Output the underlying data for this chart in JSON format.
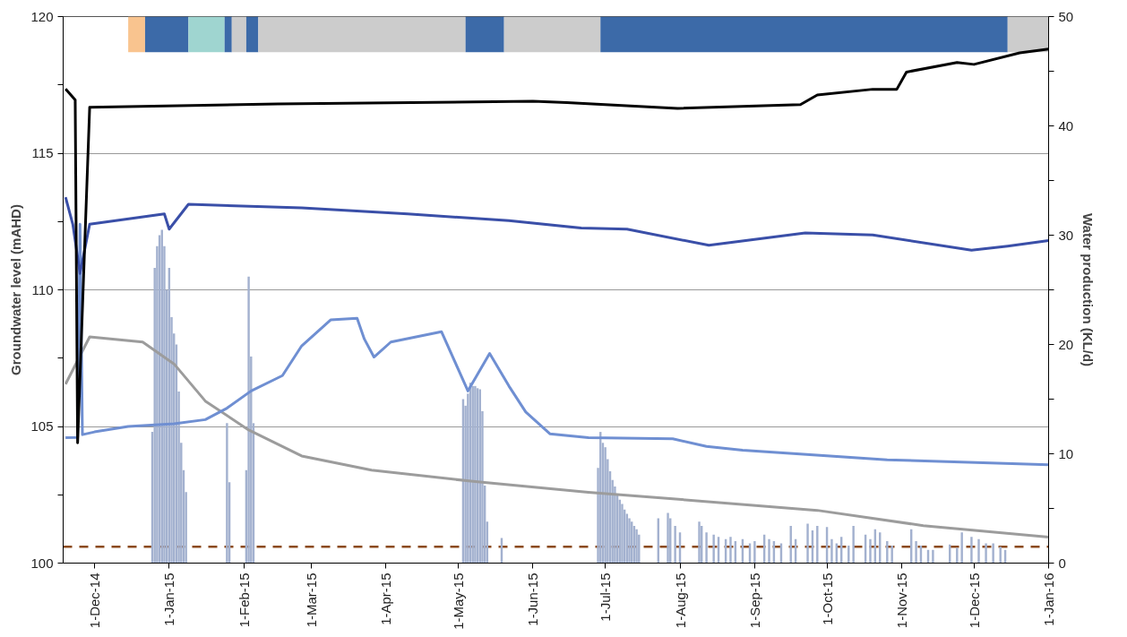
{
  "chart_data": {
    "type": "line",
    "ylabel": "Groundwater level (mAHD)",
    "y2label": "Water production (KL/d)",
    "xlim": [
      "2014-11-18",
      "2016-01-01"
    ],
    "xticks": [
      {
        "value": "2014-12-01",
        "label": "1-Dec-14"
      },
      {
        "value": "2015-01-01",
        "label": "1-Jan-15"
      },
      {
        "value": "2015-02-01",
        "label": "1-Feb-15"
      },
      {
        "value": "2015-03-01",
        "label": "1-Mar-15"
      },
      {
        "value": "2015-04-01",
        "label": "1-Apr-15"
      },
      {
        "value": "2015-05-01",
        "label": "1-May-15"
      },
      {
        "value": "2015-06-01",
        "label": "1-Jun-15"
      },
      {
        "value": "2015-07-01",
        "label": "1-Jul-15"
      },
      {
        "value": "2015-08-01",
        "label": "1-Aug-15"
      },
      {
        "value": "2015-09-01",
        "label": "1-Sep-15"
      },
      {
        "value": "2015-10-01",
        "label": "1-Oct-15"
      },
      {
        "value": "2015-11-01",
        "label": "1-Nov-15"
      },
      {
        "value": "2015-12-01",
        "label": "1-Dec-15"
      },
      {
        "value": "2016-01-01",
        "label": "1-Jan-16"
      }
    ],
    "ylim": [
      100,
      120
    ],
    "yticks": [
      100,
      {
        "value": 102.5,
        "label": null
      },
      105,
      {
        "value": 107.5,
        "label": null
      },
      110,
      {
        "value": 112.5,
        "label": null
      },
      115,
      {
        "value": 117.5,
        "label": null
      },
      120
    ],
    "y2lim": [
      0,
      50
    ],
    "y2ticks": [
      0,
      {
        "value": 5,
        "label": null
      },
      10,
      {
        "value": 15,
        "label": null
      },
      20,
      {
        "value": 25,
        "label": null
      },
      30,
      {
        "value": 35,
        "label": null
      },
      40,
      {
        "value": 45,
        "label": null
      },
      50
    ],
    "grid": "y",
    "series": [
      {
        "type": "bar",
        "axis": "y2",
        "color": "#a3b1cf",
        "x": [
          "2014-12-25",
          "2014-12-26",
          "2014-12-27",
          "2014-12-28",
          "2014-12-29",
          "2014-12-30",
          "2014-12-31",
          "2015-01-01",
          "2015-01-02",
          "2015-01-03",
          "2015-01-04",
          "2015-01-05",
          "2015-01-06",
          "2015-01-07",
          "2015-01-08",
          "2015-01-25",
          "2015-01-26",
          "2015-02-02",
          "2015-02-03",
          "2015-02-04",
          "2015-02-05",
          "2015-05-03",
          "2015-05-04",
          "2015-05-05",
          "2015-05-06",
          "2015-05-07",
          "2015-05-08",
          "2015-05-09",
          "2015-05-10",
          "2015-05-11",
          "2015-05-12",
          "2015-05-13",
          "2015-05-19",
          "2015-06-28",
          "2015-06-29",
          "2015-06-30",
          "2015-07-01",
          "2015-07-02",
          "2015-07-03",
          "2015-07-04",
          "2015-07-05",
          "2015-07-06",
          "2015-07-07",
          "2015-07-08",
          "2015-07-09",
          "2015-07-10",
          "2015-07-11",
          "2015-07-12",
          "2015-07-13",
          "2015-07-14",
          "2015-07-15",
          "2015-07-23",
          "2015-07-27",
          "2015-07-28",
          "2015-07-30",
          "2015-08-01",
          "2015-08-09",
          "2015-08-10",
          "2015-08-12",
          "2015-08-15",
          "2015-08-17",
          "2015-08-20",
          "2015-08-22",
          "2015-08-24",
          "2015-08-27",
          "2015-08-30",
          "2015-09-01",
          "2015-09-05",
          "2015-09-07",
          "2015-09-09",
          "2015-09-12",
          "2015-09-16",
          "2015-09-18",
          "2015-09-23",
          "2015-09-25",
          "2015-09-27",
          "2015-10-01",
          "2015-10-03",
          "2015-10-05",
          "2015-10-07",
          "2015-10-10",
          "2015-10-12",
          "2015-10-17",
          "2015-10-19",
          "2015-10-21",
          "2015-10-23",
          "2015-10-26",
          "2015-10-28",
          "2015-11-05",
          "2015-11-07",
          "2015-11-09",
          "2015-11-12",
          "2015-11-14",
          "2015-11-21",
          "2015-11-24",
          "2015-11-26",
          "2015-11-30",
          "2015-12-03",
          "2015-12-06",
          "2015-12-09",
          "2015-12-12",
          "2015-12-14"
        ],
        "values": [
          12,
          27,
          29,
          30,
          30.5,
          29,
          25,
          27,
          22.5,
          21,
          20,
          15.7,
          11,
          8.5,
          6.5,
          12.8,
          7.4,
          8.5,
          26.2,
          18.9,
          12.8,
          15.0,
          14.4,
          15.5,
          16.5,
          16.2,
          16.2,
          16.0,
          15.9,
          13.9,
          7.1,
          3.8,
          2.3,
          8.7,
          12.0,
          11.0,
          10.6,
          9.5,
          8.4,
          7.6,
          7.0,
          6.3,
          5.8,
          5.4,
          4.9,
          4.5,
          4.1,
          3.8,
          3.4,
          3.1,
          2.6,
          4.1,
          4.6,
          4.1,
          3.4,
          2.8,
          3.8,
          3.4,
          2.8,
          2.6,
          2.4,
          2.2,
          2.4,
          2.0,
          2.2,
          1.8,
          2.0,
          2.6,
          2.2,
          2.0,
          1.8,
          3.4,
          2.2,
          3.6,
          3.0,
          3.4,
          3.3,
          2.2,
          1.8,
          2.4,
          1.6,
          3.4,
          2.6,
          2.2,
          3.1,
          2.8,
          2.0,
          1.6,
          3.1,
          2.0,
          1.6,
          1.2,
          1.2,
          1.7,
          1.4,
          2.8,
          2.4,
          2.2,
          1.8,
          1.8,
          1.5,
          1.2
        ]
      },
      {
        "color": "#9c9c9c",
        "x": [
          "2014-11-19",
          "2014-11-29",
          "2014-12-21",
          "2015-01-03",
          "2015-01-16",
          "2015-02-03",
          "2015-02-25",
          "2015-03-26",
          "2015-05-08",
          "2015-06-24",
          "2015-07-29",
          "2015-09-27",
          "2015-11-10",
          "2016-01-01"
        ],
        "values": [
          106.55,
          108.28,
          108.09,
          107.29,
          105.93,
          104.87,
          103.92,
          103.4,
          102.98,
          102.59,
          102.35,
          101.93,
          101.37,
          100.95
        ]
      },
      {
        "color": "#6f8fd2",
        "x": [
          "2014-11-19",
          "2014-11-24",
          "2014-11-25",
          "2014-11-26",
          "2014-12-01",
          "2014-12-15",
          "2015-01-03",
          "2015-01-16",
          "2015-01-25",
          "2015-02-04",
          "2015-02-17",
          "2015-02-25",
          "2015-03-09",
          "2015-03-20",
          "2015-03-23",
          "2015-03-27",
          "2015-04-03",
          "2015-04-24",
          "2015-05-05",
          "2015-05-14",
          "2015-05-22",
          "2015-05-29",
          "2015-06-08",
          "2015-06-24",
          "2015-07-29",
          "2015-08-12",
          "2015-08-27",
          "2015-10-26",
          "2016-01-01"
        ],
        "values": [
          104.59,
          104.6,
          112.4,
          104.7,
          104.8,
          105.0,
          105.1,
          105.25,
          105.67,
          106.3,
          106.86,
          107.95,
          108.9,
          108.96,
          108.2,
          107.54,
          108.09,
          108.47,
          106.3,
          107.67,
          106.48,
          105.53,
          104.73,
          104.59,
          104.55,
          104.27,
          104.13,
          103.78,
          103.6
        ]
      },
      {
        "color": "#3a4fa8",
        "x": [
          "2014-11-19",
          "2014-11-22",
          "2014-11-25",
          "2014-11-29",
          "2014-12-30",
          "2015-01-01",
          "2015-01-09",
          "2015-02-25",
          "2015-04-10",
          "2015-05-22",
          "2015-06-21",
          "2015-07-10",
          "2015-08-13",
          "2015-09-22",
          "2015-10-20",
          "2015-11-30",
          "2015-12-15",
          "2016-01-01"
        ],
        "values": [
          113.39,
          112.4,
          110.6,
          112.4,
          112.78,
          112.22,
          113.13,
          113.0,
          112.78,
          112.53,
          112.26,
          112.22,
          111.63,
          112.08,
          112.01,
          111.45,
          111.6,
          111.8
        ]
      },
      {
        "color": "#000000",
        "x": [
          "2014-11-19",
          "2014-11-23",
          "2014-11-24",
          "2014-11-29",
          "2015-02-15",
          "2015-06-01",
          "2015-06-15",
          "2015-07-31",
          "2015-09-20",
          "2015-09-27",
          "2015-10-20",
          "2015-10-30",
          "2015-11-03",
          "2015-11-24",
          "2015-12-01",
          "2015-12-20",
          "2016-01-01"
        ],
        "values": [
          117.35,
          116.95,
          104.4,
          116.68,
          116.8,
          116.9,
          116.85,
          116.64,
          116.78,
          117.13,
          117.34,
          117.34,
          117.97,
          118.32,
          118.25,
          118.67,
          118.81
        ]
      }
    ],
    "ref_lines": [
      {
        "axis": "y",
        "value": 100.6,
        "color": "#8b4a1c",
        "line_style": "dashed"
      }
    ],
    "bands": [
      {
        "axis": "x",
        "from": "2014-12-15",
        "to": "2014-12-22",
        "color": "#f9c48f"
      },
      {
        "axis": "x",
        "from": "2014-12-22",
        "to": "2015-01-09",
        "color": "#3c6aa8"
      },
      {
        "axis": "x",
        "from": "2015-01-09",
        "to": "2015-01-24",
        "color": "#9fd5d0"
      },
      {
        "axis": "x",
        "from": "2015-01-24",
        "to": "2015-01-27",
        "color": "#3c6aa8"
      },
      {
        "axis": "x",
        "from": "2015-01-27",
        "to": "2015-02-02",
        "color": "#cccccc"
      },
      {
        "axis": "x",
        "from": "2015-02-02",
        "to": "2015-02-07",
        "color": "#3c6aa8"
      },
      {
        "axis": "x",
        "from": "2015-02-07",
        "to": "2015-05-04",
        "color": "#cccccc"
      },
      {
        "axis": "x",
        "from": "2015-05-04",
        "to": "2015-05-20",
        "color": "#3c6aa8"
      },
      {
        "axis": "x",
        "from": "2015-05-20",
        "to": "2015-06-29",
        "color": "#cccccc"
      },
      {
        "axis": "x",
        "from": "2015-06-29",
        "to": "2015-12-15",
        "color": "#3c6aa8"
      },
      {
        "axis": "x",
        "from": "2015-12-15",
        "to": "2016-01-01",
        "color": "#cccccc"
      }
    ]
  }
}
